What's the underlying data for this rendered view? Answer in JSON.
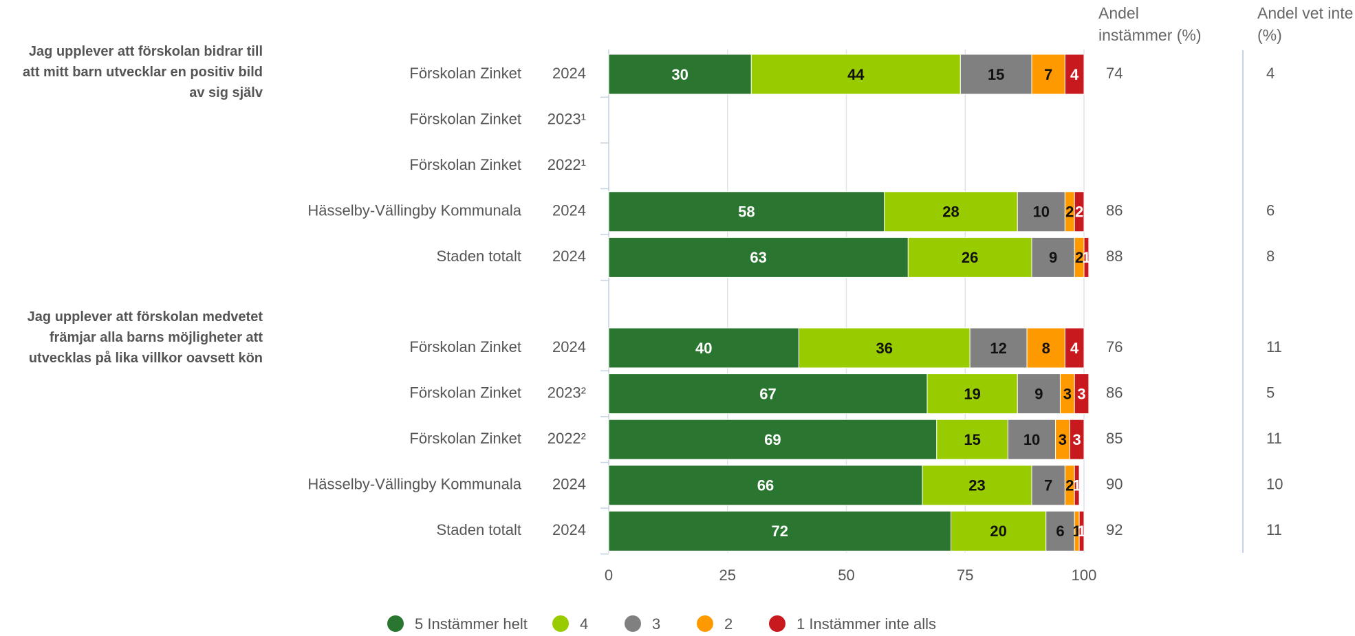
{
  "chart_data": {
    "type": "bar",
    "orientation": "horizontal",
    "stacked": true,
    "xlim": [
      0,
      100
    ],
    "xticks": [
      0,
      25,
      50,
      75,
      100
    ],
    "grid": true,
    "legend": "bottom",
    "columns": [
      "Andel instämmer (%)",
      "Andel vet inte (%)"
    ],
    "series": [
      {
        "name": "5 Instämmer helt",
        "color": "#2a7630",
        "label_color": "#ffffff"
      },
      {
        "name": "4",
        "color": "#99cc00",
        "label_color": "#111111"
      },
      {
        "name": "3",
        "color": "#808080",
        "label_color": "#111111"
      },
      {
        "name": "2",
        "color": "#ff9900",
        "label_color": "#111111"
      },
      {
        "name": "1 Instämmer inte alls",
        "color": "#c8191f",
        "label_color": "#ffffff"
      }
    ],
    "groups": [
      {
        "title": "Jag upplever att förskolan bidrar till att mitt barn utvecklar en positiv bild av sig själv",
        "categories": [
          "Förskolan Zinket",
          "Förskolan Zinket",
          "Förskolan Zinket",
          "Hässelby-Vällingby Kommunala",
          "Staden totalt"
        ],
        "years": [
          "2024",
          "2023¹",
          "2022¹",
          "2024",
          "2024"
        ],
        "series": [
          {
            "values": [
              30,
              null,
              null,
              58,
              63
            ]
          },
          {
            "values": [
              44,
              null,
              null,
              28,
              26
            ]
          },
          {
            "values": [
              15,
              null,
              null,
              10,
              9
            ]
          },
          {
            "values": [
              7,
              null,
              null,
              2,
              2
            ]
          },
          {
            "values": [
              4,
              null,
              null,
              2,
              1
            ]
          }
        ],
        "agree": [
          74,
          null,
          null,
          86,
          88
        ],
        "dont_know": [
          4,
          null,
          null,
          6,
          8
        ]
      },
      {
        "title": "Jag upplever att förskolan medvetet främjar alla barns möjligheter att utvecklas på lika villkor oavsett kön",
        "categories": [
          "Förskolan Zinket",
          "Förskolan Zinket",
          "Förskolan Zinket",
          "Hässelby-Vällingby Kommunala",
          "Staden totalt"
        ],
        "years": [
          "2024",
          "2023²",
          "2022²",
          "2024",
          "2024"
        ],
        "series": [
          {
            "values": [
              40,
              67,
              69,
              66,
              72
            ]
          },
          {
            "values": [
              36,
              19,
              15,
              23,
              20
            ]
          },
          {
            "values": [
              12,
              9,
              10,
              7,
              6
            ]
          },
          {
            "values": [
              8,
              3,
              3,
              2,
              1
            ]
          },
          {
            "values": [
              4,
              3,
              3,
              1,
              1
            ]
          }
        ],
        "agree": [
          76,
          86,
          85,
          90,
          92
        ],
        "dont_know": [
          11,
          5,
          11,
          10,
          11
        ]
      }
    ]
  }
}
